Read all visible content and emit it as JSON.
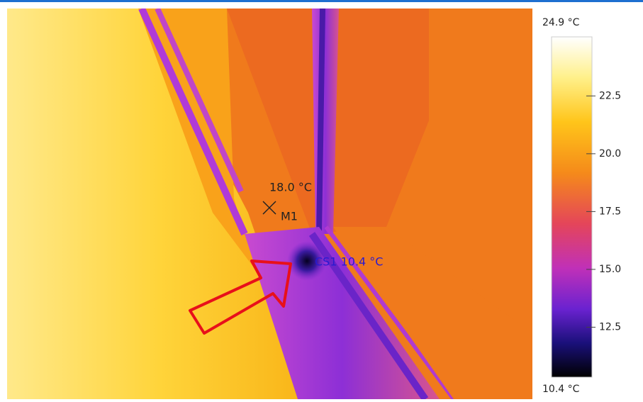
{
  "spot_marker": {
    "name": "M1",
    "reading": "18.0 °C"
  },
  "cold_spot": {
    "label": "CS1 10.4 °C"
  },
  "colorbar": {
    "max": {
      "value": 24.9,
      "label": "24.9 °C"
    },
    "min": {
      "value": 10.4,
      "label": "10.4 °C"
    },
    "ticks": [
      {
        "value": 22.5,
        "label": "22.5"
      },
      {
        "value": 20,
        "label": "20.0"
      },
      {
        "value": 17.5,
        "label": "17.5"
      },
      {
        "value": 15,
        "label": "15.0"
      },
      {
        "value": 12.5,
        "label": "12.5"
      }
    ]
  }
}
